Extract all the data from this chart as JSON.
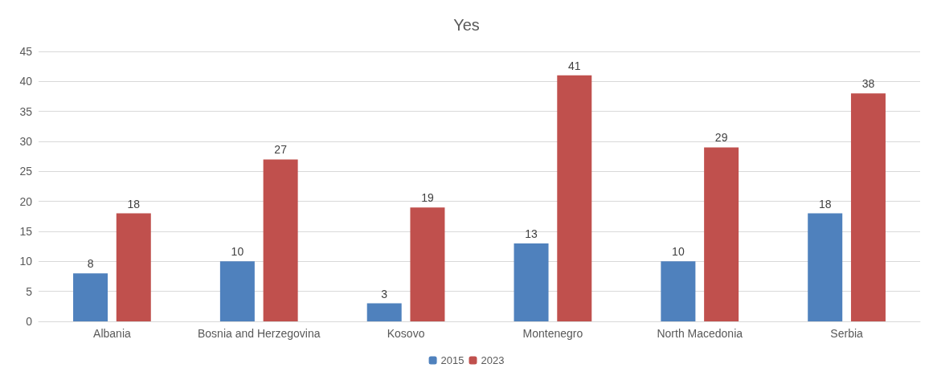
{
  "chart_data": {
    "type": "bar",
    "title": "Yes",
    "categories": [
      "Albania",
      "Bosnia and Herzegovina",
      "Kosovo",
      "Montenegro",
      "North Macedonia",
      "Serbia"
    ],
    "series": [
      {
        "name": "2015",
        "color": "#4f81bd",
        "values": [
          8,
          10,
          3,
          13,
          10,
          18
        ]
      },
      {
        "name": "2023",
        "color": "#c0504d",
        "values": [
          18,
          27,
          19,
          41,
          29,
          38
        ]
      }
    ],
    "ylim": [
      0,
      45
    ],
    "yticks": [
      0,
      5,
      10,
      15,
      20,
      25,
      30,
      35,
      40,
      45
    ],
    "grid": "y",
    "legend": "bottom",
    "data_labels": true
  }
}
